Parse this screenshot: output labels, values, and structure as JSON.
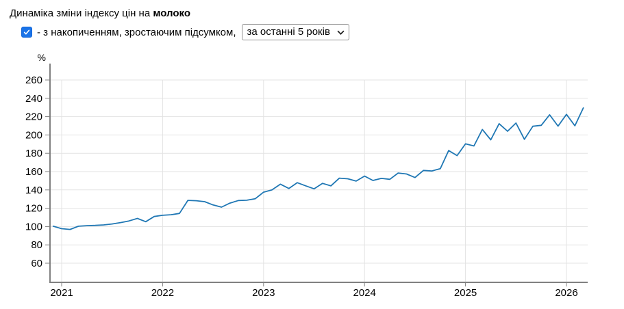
{
  "header": {
    "title_prefix": "Динаміка зміни індексу цін на ",
    "title_product": "молоко",
    "checkbox": {
      "checked": true,
      "label": "- з накопиченням, зростаючим підсумком,"
    },
    "period_select": {
      "value": "за останні 5 років",
      "options": [
        "за останні 5 років"
      ]
    }
  },
  "chart_data": {
    "type": "line",
    "title": "Динаміка зміни індексу цін на молоко",
    "ylabel": "%",
    "xlabel": "",
    "x_tick_labels": [
      "2021",
      "2022",
      "2023",
      "2024",
      "2025",
      "2026"
    ],
    "y_ticks": [
      60,
      80,
      100,
      120,
      140,
      160,
      180,
      200,
      220,
      240,
      260
    ],
    "ylim": [
      39,
      278
    ],
    "grid": true,
    "legend": "none",
    "line_color": "#1f77b4",
    "grid_color": "#e3e3e3",
    "axis_color": "#808080",
    "label_color": "#000000",
    "months": [
      "2020-12",
      "2021-01",
      "2021-02",
      "2021-03",
      "2021-04",
      "2021-05",
      "2021-06",
      "2021-07",
      "2021-08",
      "2021-09",
      "2021-10",
      "2021-11",
      "2021-12",
      "2022-01",
      "2022-02",
      "2022-03",
      "2022-04",
      "2022-05",
      "2022-06",
      "2022-07",
      "2022-08",
      "2022-09",
      "2022-10",
      "2022-11",
      "2022-12",
      "2023-01",
      "2023-02",
      "2023-03",
      "2023-04",
      "2023-05",
      "2023-06",
      "2023-07",
      "2023-08",
      "2023-09",
      "2023-10",
      "2023-11",
      "2023-12",
      "2024-01",
      "2024-02",
      "2024-03",
      "2024-04",
      "2024-05",
      "2024-06",
      "2024-07",
      "2024-08",
      "2024-09",
      "2024-10",
      "2024-11",
      "2024-12",
      "2025-01",
      "2025-02",
      "2025-03",
      "2025-04",
      "2025-05",
      "2025-06",
      "2025-07",
      "2025-08",
      "2025-09",
      "2025-10",
      "2025-11",
      "2025-12",
      "2026-01",
      "2026-02",
      "2026-03"
    ],
    "values": [
      100.4,
      97.7,
      96.9,
      100.4,
      101.0,
      101.3,
      101.8,
      102.8,
      104.3,
      106.1,
      108.9,
      105.3,
      111.0,
      112.3,
      112.9,
      114.3,
      128.6,
      128.2,
      127.2,
      123.6,
      121.2,
      125.6,
      128.4,
      128.7,
      130.3,
      137.5,
      140.0,
      146.3,
      141.6,
      147.9,
      144.5,
      141.2,
      147.2,
      144.4,
      152.8,
      152.2,
      149.6,
      155.1,
      150.3,
      152.6,
      151.6,
      158.4,
      157.4,
      153.5,
      161.3,
      160.7,
      163.2,
      183.0,
      177.5,
      190.3,
      188.0,
      206.0,
      194.7,
      212.3,
      204.0,
      213.0,
      195.2,
      209.5,
      210.5,
      222.0,
      209.6,
      222.5,
      210.0,
      229.5
    ]
  }
}
